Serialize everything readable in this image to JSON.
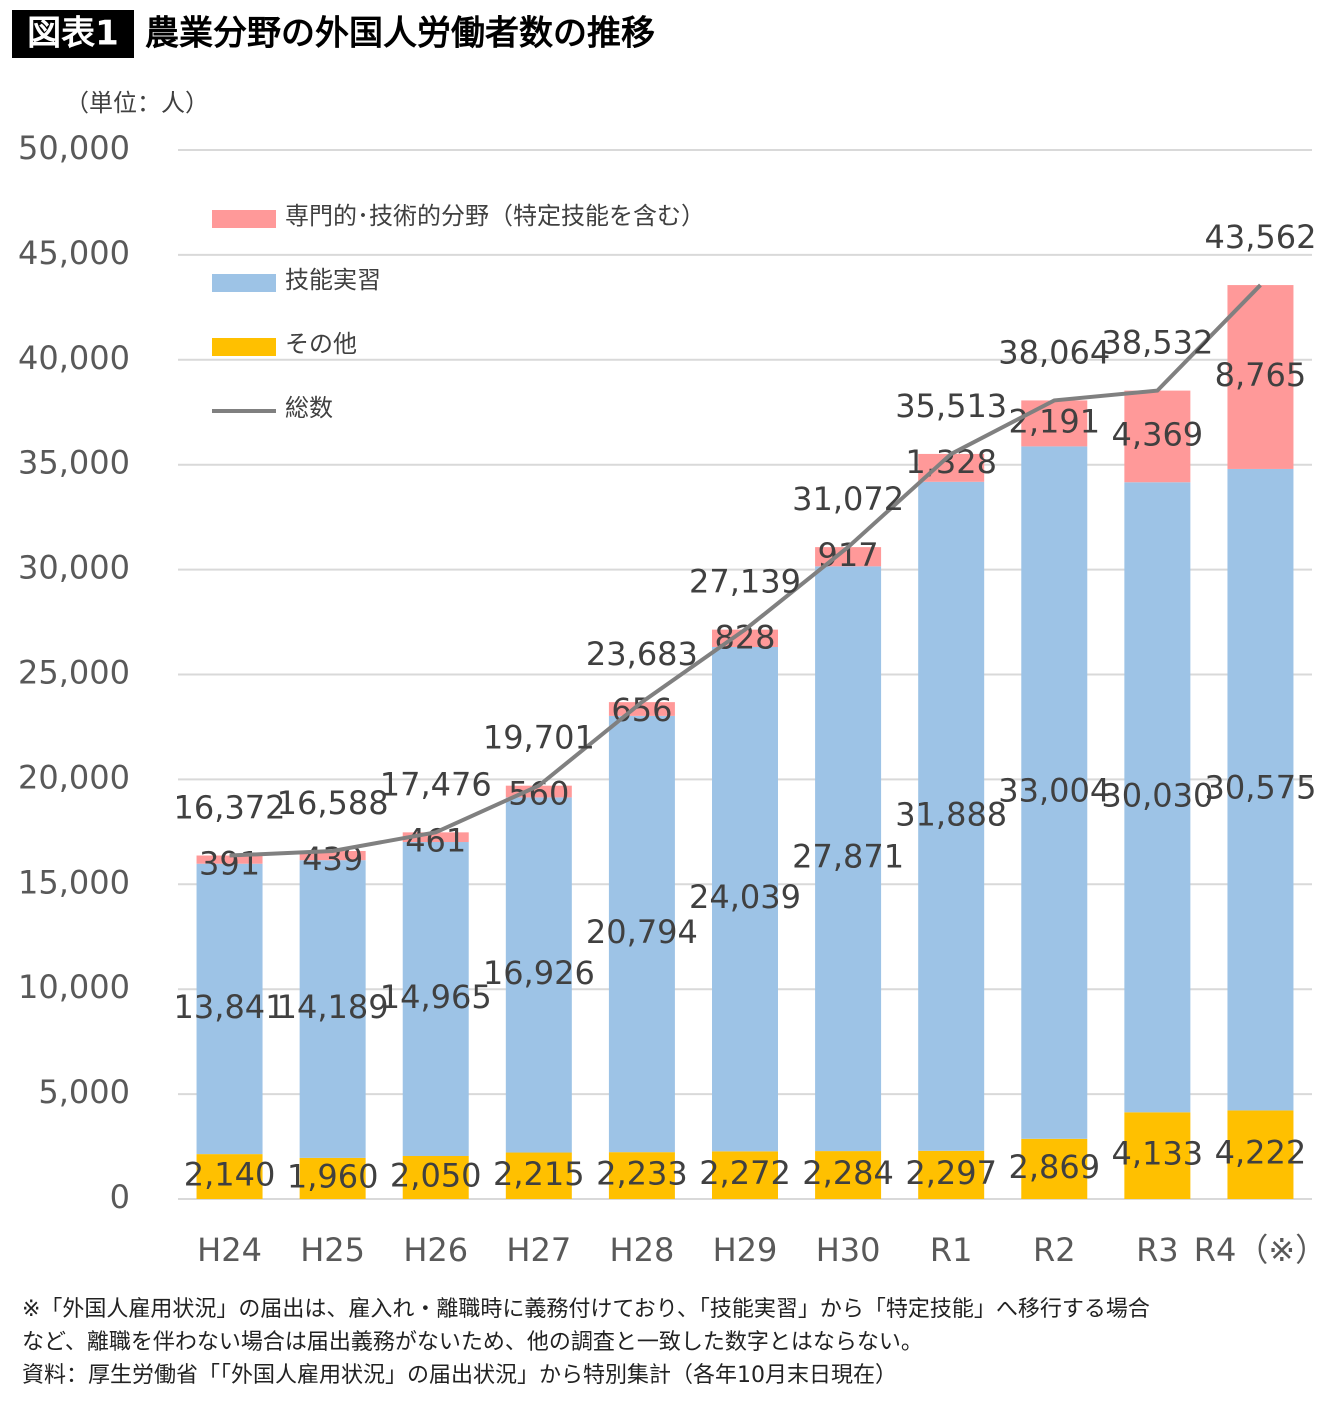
{
  "chart_data": {
    "type": "bar",
    "stacked": true,
    "title_badge": "図表1",
    "title": "農業分野の外国人労働者数の推移",
    "unit_label": "（単位：人）",
    "categories": [
      "H24",
      "H25",
      "H26",
      "H27",
      "H28",
      "H29",
      "H30",
      "R1",
      "R2",
      "R3",
      "R4（※）"
    ],
    "series": [
      {
        "name": "その他",
        "color": "#ffc000",
        "values": [
          2140,
          1960,
          2050,
          2215,
          2233,
          2272,
          2284,
          2297,
          2869,
          4133,
          4222
        ],
        "value_labels": [
          "2,140",
          "1,960",
          "2,050",
          "2,215",
          "2,233",
          "2,272",
          "2,284",
          "2,297",
          "2,869",
          "4,133",
          "4,222"
        ]
      },
      {
        "name": "技能実習",
        "color": "#9dc3e6",
        "values": [
          13841,
          14189,
          14965,
          16926,
          20794,
          24039,
          27871,
          31888,
          33004,
          30030,
          30575
        ],
        "value_labels": [
          "13,841",
          "14,189",
          "14,965",
          "16,926",
          "20,794",
          "24,039",
          "27,871",
          "31,888",
          "33,004",
          "30,030",
          "30,575"
        ]
      },
      {
        "name": "専門的･技術的分野（特定技能を含む）",
        "color": "#ff9999",
        "values": [
          391,
          439,
          461,
          560,
          656,
          828,
          917,
          1328,
          2191,
          4369,
          8765
        ],
        "value_labels": [
          "391",
          "439",
          "461",
          "560",
          "656",
          "828",
          "917",
          "1,328",
          "2,191",
          "4,369",
          "8,765"
        ]
      },
      {
        "name": "総数",
        "type": "line",
        "color": "#808080",
        "values": [
          16372,
          16588,
          17476,
          19701,
          23683,
          27139,
          31072,
          35513,
          38064,
          38532,
          43562
        ],
        "value_labels": [
          "16,372",
          "16,588",
          "17,476",
          "19,701",
          "23,683",
          "27,139",
          "31,072",
          "35,513",
          "38,064",
          "38,532",
          "43,562"
        ]
      }
    ],
    "ylim": [
      0,
      50000
    ],
    "yticks": [
      0,
      {
        "value": 5000,
        "label": "5,000"
      },
      {
        "value": 10000,
        "label": "10,000"
      },
      {
        "value": 15000,
        "label": "15,000"
      },
      {
        "value": 20000,
        "label": "20,000"
      },
      {
        "value": 25000,
        "label": "25,000"
      },
      {
        "value": 30000,
        "label": "30,000"
      },
      {
        "value": 35000,
        "label": "35,000"
      },
      {
        "value": 40000,
        "label": "40,000"
      },
      {
        "value": 45000,
        "label": "45,000"
      },
      {
        "value": 50000,
        "label": "50,000"
      }
    ],
    "grid": true,
    "notes": [
      "※「外国人雇用状況」の届出は、雇入れ・離職時に義務付けており、「技能実習」から「特定技能」へ移行する場合",
      "など、離職を伴わない場合は届出義務がないため、他の調査と一致した数字とはならない。",
      "資料：厚生労働省「「外国人雇用状況」の届出状況」から特別集計（各年10月末日現在）"
    ]
  }
}
